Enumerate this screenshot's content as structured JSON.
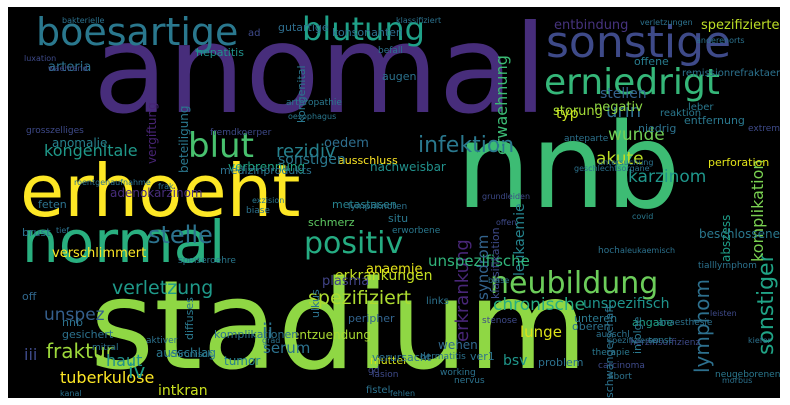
{
  "word_cloud": {
    "background": "#000000",
    "words": [
      {
        "text": "stadium",
        "color": "#8fd744"
      },
      {
        "text": "anomal",
        "color": "#472d7b"
      },
      {
        "text": "nnb",
        "color": "#3dbc74"
      },
      {
        "text": "erhoeht",
        "color": "#fde725"
      },
      {
        "text": "normal",
        "color": "#29af7f"
      },
      {
        "text": "boesartige",
        "color": "#2a788e"
      },
      {
        "text": "sonstige",
        "color": "#3e4a89"
      },
      {
        "text": "blutung",
        "color": "#1fa188"
      },
      {
        "text": "erniedrigt",
        "color": "#35b779"
      },
      {
        "text": "neubildung",
        "color": "#6ccd5a"
      },
      {
        "text": "blut",
        "color": "#48c16e"
      },
      {
        "text": "positiv",
        "color": "#25ac82"
      },
      {
        "text": "stelle",
        "color": "#2c728e"
      },
      {
        "text": "infektion",
        "color": "#2a788e"
      },
      {
        "text": "spezifiziert",
        "color": "#addc30"
      },
      {
        "text": "erkrankung",
        "color": "#482677"
      },
      {
        "text": "chronische",
        "color": "#27ad81"
      },
      {
        "text": "verletzung",
        "color": "#1f9a8a"
      },
      {
        "text": "fraktur",
        "color": "#9dd93b"
      },
      {
        "text": "tuberkulose",
        "color": "#fde725"
      },
      {
        "text": "lymphom",
        "color": "#2d708e"
      },
      {
        "text": "sonstiger",
        "color": "#20a486"
      },
      {
        "text": "wunde",
        "color": "#73d056"
      },
      {
        "text": "akute",
        "color": "#bddf26"
      },
      {
        "text": "urin",
        "color": "#2e6e8e"
      },
      {
        "text": "karzinom",
        "color": "#1f968b"
      },
      {
        "text": "komplikation",
        "color": "#7ad151"
      },
      {
        "text": "leukaemie",
        "color": "#25848e"
      },
      {
        "text": "syndrom",
        "color": "#33638d"
      },
      {
        "text": "unspezifische",
        "color": "#31b57b"
      },
      {
        "text": "erwaehnung",
        "color": "#3bbb75"
      },
      {
        "text": "kongenitale",
        "color": "#1f998a"
      },
      {
        "text": "rezidiv",
        "color": "#26828e"
      },
      {
        "text": "unspez",
        "color": "#355f8d"
      },
      {
        "text": "haut",
        "color": "#21918c"
      },
      {
        "text": "iv",
        "color": "#1f9e89"
      },
      {
        "text": "ii",
        "color": "#2c728e"
      },
      {
        "text": "iii",
        "color": "#3e4a89"
      },
      {
        "text": "serum",
        "color": "#2c728e"
      },
      {
        "text": "lunge",
        "color": "#dde318"
      },
      {
        "text": "bsv",
        "color": "#1f968b"
      },
      {
        "text": "unspezifisch",
        "color": "#1f948c"
      },
      {
        "text": "erkrankungen",
        "color": "#c2df23"
      },
      {
        "text": "plasma",
        "color": "#414487"
      },
      {
        "text": "anaemie",
        "color": "#e5e419"
      },
      {
        "text": "oedem",
        "color": "#2e6e8e"
      },
      {
        "text": "verschlimmert",
        "color": "#fde725"
      },
      {
        "text": "stellen",
        "color": "#34618d"
      },
      {
        "text": "negativ",
        "color": "#8bd646"
      },
      {
        "text": "storung",
        "color": "#a2da37"
      },
      {
        "text": "typ",
        "color": "#cae11f"
      },
      {
        "text": "offene",
        "color": "#287c8e"
      },
      {
        "text": "entbindung",
        "color": "#46337e"
      },
      {
        "text": "spezifizierte",
        "color": "#bddf26"
      },
      {
        "text": "gutartige",
        "color": "#2e6e8e"
      },
      {
        "text": "intkran",
        "color": "#cae11f"
      },
      {
        "text": "ausschlag",
        "color": "#2a788e"
      },
      {
        "text": "verbrennung",
        "color": "#20a486"
      },
      {
        "text": "nachweisbar",
        "color": "#21918c"
      },
      {
        "text": "metastasen",
        "color": "#26828e"
      },
      {
        "text": "perforation",
        "color": "#e2e418"
      },
      {
        "text": "abszess",
        "color": "#1f9e89"
      },
      {
        "text": "adenokarzinom",
        "color": "#472d7b"
      },
      {
        "text": "schmerz",
        "color": "#5ec962"
      },
      {
        "text": "vergiftung",
        "color": "#482475"
      },
      {
        "text": "beteiligung",
        "color": "#2a788e"
      },
      {
        "text": "beschlossene",
        "color": "#2a788e"
      },
      {
        "text": "angabe",
        "color": "#1fa188"
      },
      {
        "text": "wehen",
        "color": "#31688e"
      },
      {
        "text": "tumor",
        "color": "#26828e"
      },
      {
        "text": "mutter",
        "color": "#d2e21b"
      },
      {
        "text": "brust",
        "color": "#2c728e"
      },
      {
        "text": "off",
        "color": "#31688e"
      },
      {
        "text": "feten",
        "color": "#2c728e"
      },
      {
        "text": "anomalie",
        "color": "#26828e"
      },
      {
        "text": "hepatitis",
        "color": "#21918c"
      },
      {
        "text": "arteria",
        "color": "#2c728e"
      },
      {
        "text": "ad",
        "color": "#3e4a89"
      },
      {
        "text": "kongenital",
        "color": "#2a788e"
      },
      {
        "text": "konsonanten",
        "color": "#2e6e8e"
      },
      {
        "text": "ausschluss",
        "color": "#fde725"
      },
      {
        "text": "sonstigen",
        "color": "#2a788e"
      },
      {
        "text": "nnb",
        "color": "#2c728e"
      },
      {
        "text": "gesichert",
        "color": "#2c728e"
      },
      {
        "text": "peripher",
        "color": "#32648e"
      },
      {
        "text": "verursacht",
        "color": "#2c728e"
      },
      {
        "text": "situ",
        "color": "#2a788e"
      },
      {
        "text": "entzuendung",
        "color": "#aadc32"
      },
      {
        "text": "unteren",
        "color": "#2a788e"
      },
      {
        "text": "oberen",
        "color": "#2c728e"
      },
      {
        "text": "problem",
        "color": "#2c728e"
      },
      {
        "text": "infolge",
        "color": "#2a788e"
      },
      {
        "text": "ver1",
        "color": "#2c728e"
      },
      {
        "text": "fistel",
        "color": "#2c728e"
      },
      {
        "text": "ulkus",
        "color": "#2c728e"
      },
      {
        "text": "diffuses",
        "color": "#2a788e"
      },
      {
        "text": "komplikationen",
        "color": "#2c728e"
      },
      {
        "text": "medizinprodukts",
        "color": "#2c728e"
      },
      {
        "text": "links",
        "color": "#2c728e"
      },
      {
        "text": "bakterielle",
        "color": "#2c728e"
      },
      {
        "text": "klassifiziert",
        "color": "#2c728e"
      },
      {
        "text": "luxation",
        "color": "#3e4a89"
      },
      {
        "text": "waehrend",
        "color": "#3e4a89"
      },
      {
        "text": "grosszelliges",
        "color": "#3e4a89"
      },
      {
        "text": "fremdkoerper",
        "color": "#3e4a89"
      },
      {
        "text": "arthropathie",
        "color": "#2a788e"
      },
      {
        "text": "oesophagus",
        "color": "#2a788e"
      },
      {
        "text": "exzision",
        "color": "#2a788e"
      },
      {
        "text": "speiseroehre",
        "color": "#2a788e"
      },
      {
        "text": "chronisch",
        "color": "#2a788e"
      },
      {
        "text": "herzinsuffizienz",
        "color": "#3e4a89"
      },
      {
        "text": "gd",
        "color": "#3e4a89"
      },
      {
        "text": "working",
        "color": "#2c728e"
      },
      {
        "text": "nervus",
        "color": "#2c728e"
      },
      {
        "text": "therapie",
        "color": "#2a788e"
      },
      {
        "text": "carcinoma",
        "color": "#3e4a89"
      },
      {
        "text": "abort",
        "color": "#2c728e"
      },
      {
        "text": "ausschl",
        "color": "#2c728e"
      },
      {
        "text": "stenose",
        "color": "#3e4a89"
      },
      {
        "text": "dermatitis",
        "color": "#2c728e"
      },
      {
        "text": "fehlen",
        "color": "#2c728e"
      },
      {
        "text": "klassifikation",
        "color": "#3e4a89"
      },
      {
        "text": "remissionrefraktaer",
        "color": "#2c728e"
      },
      {
        "text": "reaktion",
        "color": "#2a788e"
      },
      {
        "text": "niedrig",
        "color": "#2c728e"
      },
      {
        "text": "leber",
        "color": "#2a788e"
      },
      {
        "text": "entfernung",
        "color": "#2a788e"
      },
      {
        "text": "anderenorts",
        "color": "#2c728e"
      },
      {
        "text": "schwangerschaft",
        "color": "#2c728e"
      },
      {
        "text": "sonst",
        "color": "#2a788e"
      },
      {
        "text": "neugeborenen",
        "color": "#2a788e"
      },
      {
        "text": "extrem",
        "color": "#3e4a89"
      },
      {
        "text": "hoch",
        "color": "#2c728e"
      },
      {
        "text": "covid",
        "color": "#2a788e"
      },
      {
        "text": "befall",
        "color": "#2c728e"
      },
      {
        "text": "augen",
        "color": "#2c728e"
      },
      {
        "text": "anteparte",
        "color": "#2c728e"
      },
      {
        "text": "biase",
        "color": "#2c728e"
      },
      {
        "text": "lymphknoten",
        "color": "#2c728e"
      },
      {
        "text": "tief",
        "color": "#2c728e"
      },
      {
        "text": "kiefer",
        "color": "#2c728e"
      },
      {
        "text": "leisten",
        "color": "#3e4a89"
      },
      {
        "text": "grundleiden",
        "color": "#3e4a89"
      },
      {
        "text": "offen",
        "color": "#3e4a89"
      },
      {
        "text": "erworbene",
        "color": "#2a788e"
      },
      {
        "text": "geschlechtsorgane",
        "color": "#2c728e"
      },
      {
        "text": "verletzungen",
        "color": "#2c728e"
      },
      {
        "text": "aleukaemisch",
        "color": "#2c728e"
      },
      {
        "text": "anaesthesie",
        "color": "#2c728e"
      },
      {
        "text": "aktiver",
        "color": "#2c728e"
      },
      {
        "text": "mitral",
        "color": "#2c728e"
      },
      {
        "text": "tialllymphom",
        "color": "#2c728e"
      },
      {
        "text": "spezifizierter",
        "color": "#2c728e"
      },
      {
        "text": "untersuchung",
        "color": "#2c728e"
      },
      {
        "text": "kanal",
        "color": "#2c728e"
      },
      {
        "text": "roentgenaufnahme",
        "color": "#2c728e"
      },
      {
        "text": "morbus",
        "color": "#2c728e"
      },
      {
        "text": "grad",
        "color": "#2c728e"
      },
      {
        "text": "lasion",
        "color": "#3e4a89"
      },
      {
        "text": "blase",
        "color": "#2c728e"
      },
      {
        "text": "frak",
        "color": "#2c728e"
      },
      {
        "text": "akut",
        "color": "#2c728e"
      },
      {
        "text": "sonstig",
        "color": "#2c728e"
      }
    ]
  }
}
